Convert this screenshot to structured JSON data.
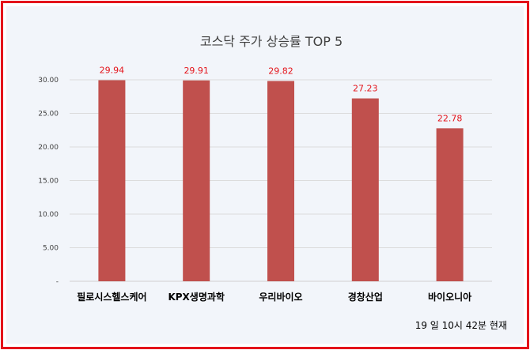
{
  "chart_data": {
    "type": "bar",
    "title": "코스닥 주가 상승률 TOP 5",
    "categories": [
      "필로시스헬스케어",
      "KPX생명과학",
      "우리바이오",
      "경창산업",
      "바이오니아"
    ],
    "values": [
      29.94,
      29.91,
      29.82,
      27.23,
      22.78
    ],
    "value_labels": [
      "29.94",
      "29.91",
      "29.82",
      "27.23",
      "22.78"
    ],
    "ylim": [
      0,
      30
    ],
    "yticks": [
      0,
      5,
      10,
      15,
      20,
      25,
      30
    ],
    "ytick_labels": [
      "-",
      "5.00",
      "10.00",
      "15.00",
      "20.00",
      "25.00",
      "30.00"
    ],
    "grid": true,
    "legend": "none",
    "bar_color": "#c0504d",
    "label_color": "#e4141b",
    "note": "19 일 10시 42분 현재"
  }
}
